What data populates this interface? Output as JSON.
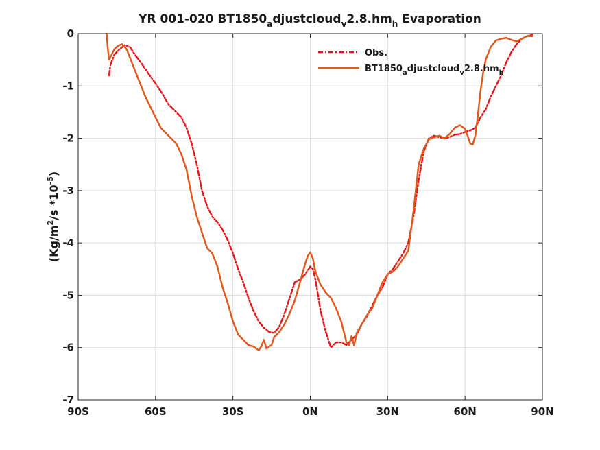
{
  "chart_data": {
    "type": "line",
    "title": {
      "prefix": "YR 001-020 BT1850",
      "sub1": "a",
      "mid": "djustcloud",
      "sub2": "v",
      "mid2": "2.8.hm",
      "sub3": "h",
      "suffix": " Evaporation"
    },
    "ylabel": {
      "a": "(Kg/m",
      "sup1": "2",
      "b": "/s *10",
      "sup2": "-5",
      "c": ")"
    },
    "xlim": [
      -90,
      90
    ],
    "ylim": [
      -7,
      0
    ],
    "grid": true,
    "legend_position": "top-right",
    "x_ticks": [
      {
        "value": -90,
        "label": "90S"
      },
      {
        "value": -60,
        "label": "60S"
      },
      {
        "value": -30,
        "label": "30S"
      },
      {
        "value": 0,
        "label": "0N"
      },
      {
        "value": 30,
        "label": "30N"
      },
      {
        "value": 60,
        "label": "60N"
      },
      {
        "value": 90,
        "label": "90N"
      }
    ],
    "y_ticks": [
      {
        "value": 0,
        "label": "0"
      },
      {
        "value": -1,
        "label": "-1"
      },
      {
        "value": -2,
        "label": "-2"
      },
      {
        "value": -3,
        "label": "-3"
      },
      {
        "value": -4,
        "label": "-4"
      },
      {
        "value": -5,
        "label": "-5"
      },
      {
        "value": -6,
        "label": "-6"
      },
      {
        "value": -7,
        "label": "-7"
      }
    ],
    "series": [
      {
        "name": "Obs.",
        "color": "#e8151b",
        "dash": true,
        "x": [
          -78,
          -77.5,
          -76,
          -74,
          -72,
          -70,
          -68,
          -65,
          -63,
          -60,
          -58,
          -55,
          -52,
          -50,
          -48,
          -46,
          -44,
          -42,
          -40,
          -38,
          -36,
          -34,
          -32,
          -30,
          -28,
          -26,
          -24,
          -22,
          -20,
          -18,
          -16,
          -14,
          -12,
          -10,
          -8,
          -6,
          -4,
          -2,
          0,
          1,
          2,
          3,
          4,
          6,
          8,
          10,
          12,
          14,
          16,
          18,
          20,
          22,
          24,
          26,
          28,
          30,
          32,
          34,
          36,
          38,
          40,
          42,
          44,
          46,
          48,
          50,
          52,
          54,
          56,
          58,
          60,
          62,
          64,
          66,
          68,
          70,
          72,
          74,
          76,
          78,
          80,
          82,
          84,
          86
        ],
        "y": [
          -0.8,
          -0.6,
          -0.4,
          -0.3,
          -0.22,
          -0.25,
          -0.4,
          -0.6,
          -0.75,
          -0.95,
          -1.1,
          -1.35,
          -1.5,
          -1.6,
          -1.8,
          -2.1,
          -2.5,
          -3.0,
          -3.3,
          -3.5,
          -3.6,
          -3.75,
          -3.95,
          -4.2,
          -4.5,
          -4.75,
          -5.05,
          -5.3,
          -5.5,
          -5.62,
          -5.7,
          -5.72,
          -5.6,
          -5.35,
          -5.05,
          -4.75,
          -4.7,
          -4.6,
          -4.45,
          -4.5,
          -4.7,
          -5.0,
          -5.3,
          -5.7,
          -6.0,
          -5.9,
          -5.9,
          -5.95,
          -5.85,
          -5.75,
          -5.55,
          -5.4,
          -5.2,
          -5.0,
          -4.85,
          -4.6,
          -4.5,
          -4.35,
          -4.2,
          -4.0,
          -3.5,
          -2.8,
          -2.25,
          -2.0,
          -1.95,
          -1.98,
          -2.0,
          -1.98,
          -1.93,
          -1.92,
          -1.88,
          -1.85,
          -1.8,
          -1.6,
          -1.45,
          -1.2,
          -1.0,
          -0.8,
          -0.55,
          -0.35,
          -0.2,
          -0.1,
          -0.05,
          -0.02
        ]
      },
      {
        "name": "BT1850adjustcloudv2.8.hmh",
        "legend_label": {
          "prefix": "BT1850",
          "sub1": "a",
          "mid": "djustcloud",
          "sub2": "v",
          "mid2": "2.8.hm",
          "sub3": "h"
        },
        "color": "#e0591d",
        "dash": false,
        "x": [
          -79,
          -78.5,
          -78,
          -77,
          -76,
          -75,
          -74,
          -73,
          -72,
          -71,
          -70,
          -68,
          -66,
          -64,
          -62,
          -60,
          -58,
          -55,
          -52,
          -50,
          -48,
          -46,
          -44,
          -42,
          -40,
          -38,
          -36,
          -34,
          -32,
          -30,
          -28,
          -26,
          -24,
          -22,
          -20,
          -19,
          -18,
          -17,
          -16,
          -15,
          -14,
          -12,
          -10,
          -8,
          -6,
          -4,
          -2,
          -1,
          0,
          1,
          2,
          4,
          6,
          8,
          10,
          12,
          14,
          15,
          16,
          17,
          18,
          20,
          22,
          24,
          26,
          28,
          30,
          32,
          34,
          36,
          38,
          40,
          42,
          44,
          46,
          48,
          50,
          52,
          54,
          56,
          58,
          60,
          61,
          62,
          63,
          64,
          65,
          66,
          67,
          68,
          70,
          72,
          74,
          76,
          78,
          80,
          82,
          84,
          86
        ],
        "y": [
          0,
          -0.3,
          -0.5,
          -0.4,
          -0.3,
          -0.25,
          -0.22,
          -0.2,
          -0.25,
          -0.32,
          -0.45,
          -0.7,
          -0.95,
          -1.2,
          -1.4,
          -1.6,
          -1.8,
          -1.95,
          -2.1,
          -2.3,
          -2.6,
          -3.1,
          -3.5,
          -3.8,
          -4.1,
          -4.2,
          -4.45,
          -4.85,
          -5.15,
          -5.5,
          -5.75,
          -5.85,
          -5.95,
          -5.98,
          -6.05,
          -5.98,
          -5.85,
          -6.02,
          -5.98,
          -5.95,
          -5.8,
          -5.7,
          -5.55,
          -5.35,
          -5.1,
          -4.75,
          -4.4,
          -4.25,
          -4.18,
          -4.3,
          -4.55,
          -4.8,
          -4.95,
          -5.05,
          -5.25,
          -5.5,
          -5.9,
          -5.95,
          -5.78,
          -5.96,
          -5.72,
          -5.55,
          -5.38,
          -5.25,
          -5.0,
          -4.75,
          -4.6,
          -4.55,
          -4.45,
          -4.3,
          -4.15,
          -3.4,
          -2.5,
          -2.2,
          -2.02,
          -1.98,
          -1.95,
          -2.0,
          -1.92,
          -1.8,
          -1.75,
          -1.82,
          -1.95,
          -2.1,
          -2.12,
          -1.95,
          -1.55,
          -1.1,
          -0.75,
          -0.5,
          -0.25,
          -0.13,
          -0.1,
          -0.08,
          -0.12,
          -0.15,
          -0.1,
          -0.05,
          -0.05
        ]
      }
    ]
  }
}
